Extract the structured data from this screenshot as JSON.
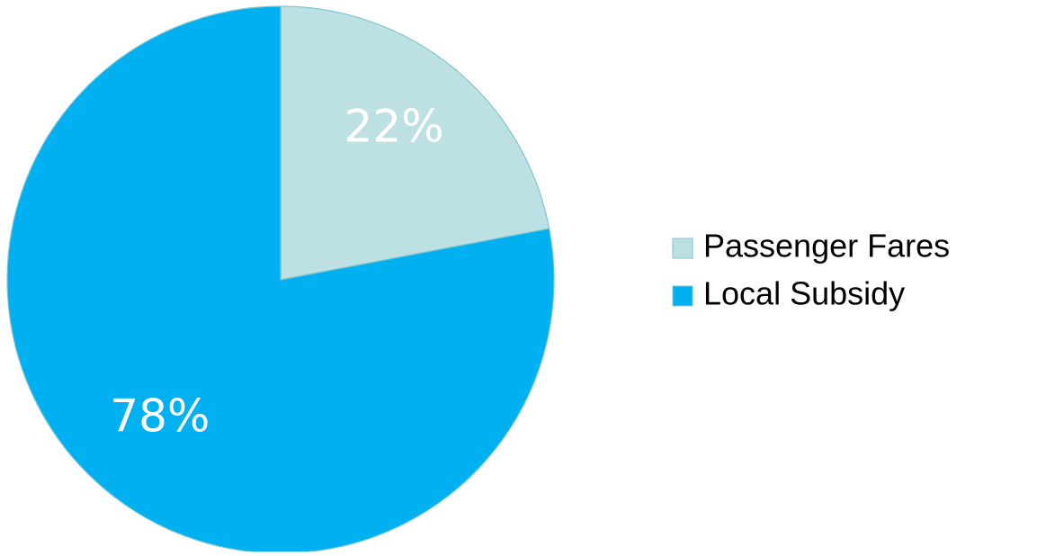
{
  "chart_data": {
    "type": "pie",
    "title": "",
    "categories": [
      "Passenger Fares",
      "Local Subsidy"
    ],
    "values": [
      22,
      78
    ],
    "labels": [
      "22%",
      "78%"
    ],
    "colors": [
      "#BDE1E3",
      "#00B0F0"
    ],
    "data_label_color": "#ffffff",
    "stroke_color": "#7FC6D1",
    "start_angle_deg": 0,
    "direction": "clockwise",
    "legend": {
      "position": "right",
      "items": [
        "Passenger Fares",
        "Local Subsidy"
      ]
    }
  }
}
